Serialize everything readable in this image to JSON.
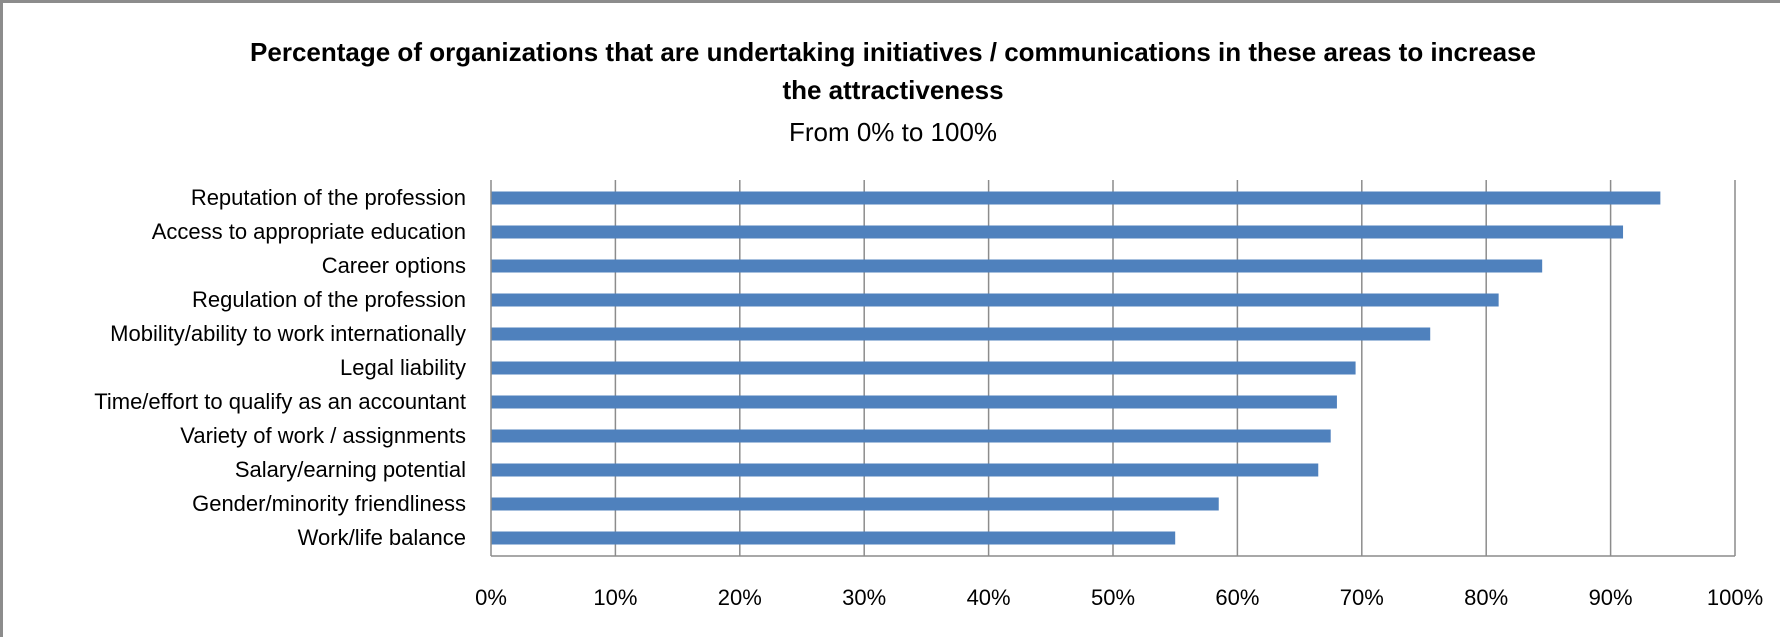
{
  "chart_data": {
    "type": "bar",
    "orientation": "horizontal",
    "title_line1": "Percentage of organizations that are undertaking initiatives / communications in these areas to increase",
    "title_line2": "the attractiveness",
    "subtitle": "From 0% to 100%",
    "categories": [
      "Reputation of the profession",
      "Access to appropriate education",
      "Career options",
      "Regulation of the profession",
      "Mobility/ability to work internationally",
      "Legal liability",
      "Time/effort to qualify as an accountant",
      "Variety of work / assignments",
      "Salary/earning potential",
      "Gender/minority friendliness",
      "Work/life balance"
    ],
    "values": [
      94,
      91,
      84.5,
      81,
      75.5,
      69.5,
      68,
      67.5,
      66.5,
      58.5,
      55
    ],
    "xlim": [
      0,
      100
    ],
    "xticks": [
      "0%",
      "10%",
      "20%",
      "30%",
      "40%",
      "50%",
      "60%",
      "70%",
      "80%",
      "90%",
      "100%"
    ],
    "grid": true,
    "legend": "none",
    "bar_color": "#4f81bd"
  }
}
